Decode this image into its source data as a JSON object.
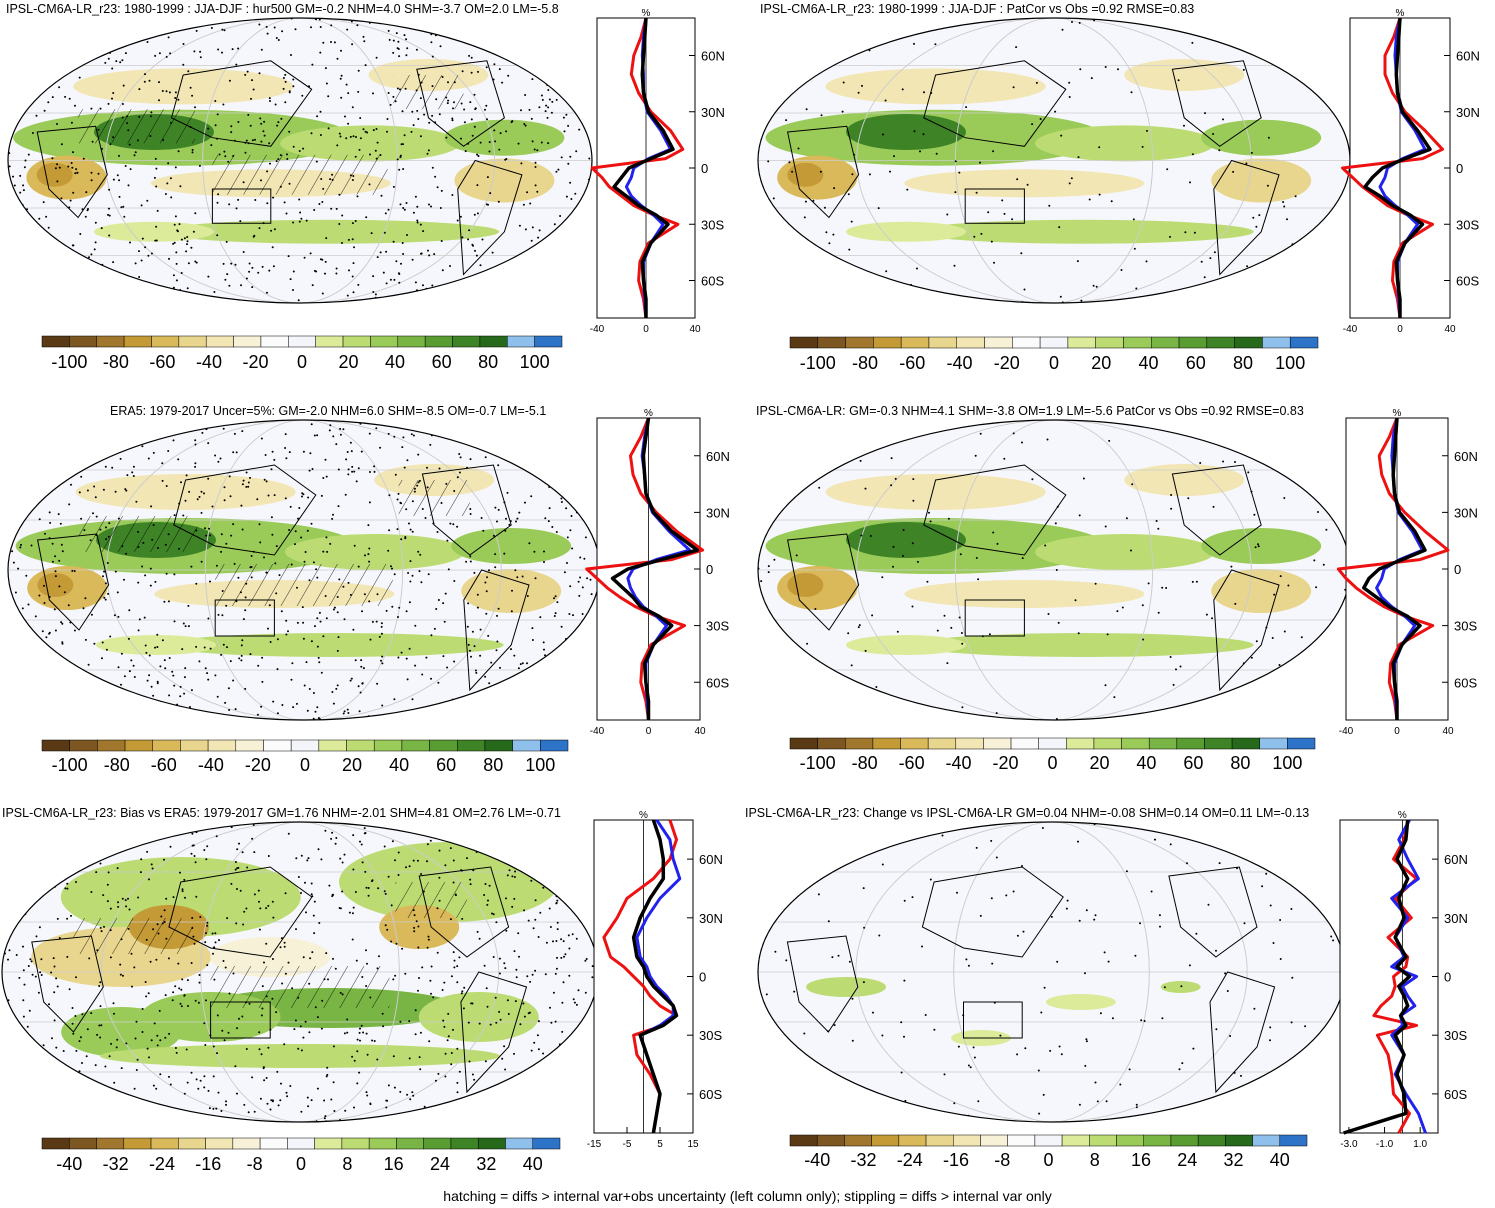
{
  "footer": "hatching = diffs > internal var+obs uncertainty (left column only); stippling = diffs > internal var only",
  "profile_unit": "%",
  "lat_labels": [
    "60N",
    "30N",
    "0",
    "30S",
    "60S"
  ],
  "palette": [
    "#5a3a14",
    "#7d5722",
    "#a1772d",
    "#c39a36",
    "#dab95a",
    "#e9d68e",
    "#f2e6b5",
    "#f7f1d7",
    "#fbfbfb",
    "#f3f5fb",
    "#dbeb9a",
    "#bcdc73",
    "#9acb59",
    "#79b544",
    "#589c32",
    "#3e8426",
    "#27691b",
    "#8fc0ec",
    "#2d73c8"
  ],
  "panels": [
    {
      "title": "IPSL-CM6A-LR_r23: 1980-1999 : JJA-DJF : hur500 GM=-0.2 NHM=4.0 SHM=-3.7 OM=2.0 LM=-5.8",
      "hatching": true,
      "stipple": "dense",
      "cbar_labels": [
        "-100",
        "-80",
        "-60",
        "-40",
        "-20",
        "0",
        "20",
        "40",
        "60",
        "80",
        "100"
      ],
      "xticks": [
        "-40",
        "0",
        "40"
      ],
      "xlim": [
        -40,
        40
      ],
      "chart_data": {
        "type": "line",
        "xlabel": "%",
        "x_unit": "%",
        "y_unit": "latitude",
        "ylim": [
          -80,
          80
        ],
        "lat": [
          80,
          70,
          60,
          50,
          40,
          30,
          20,
          10,
          5,
          0,
          -5,
          -10,
          -15,
          -20,
          -25,
          -30,
          -40,
          -50,
          -60,
          -70,
          -80
        ],
        "series": [
          {
            "name": "black",
            "color": "#000000",
            "values": [
              0,
              -1,
              -2,
              -3,
              -2,
              2,
              14,
              22,
              4,
              -14,
              -20,
              -26,
              -16,
              -6,
              8,
              18,
              4,
              -3,
              -2,
              0,
              0
            ]
          },
          {
            "name": "blue",
            "color": "#2222ee",
            "values": [
              0,
              -2,
              -3,
              -2,
              -2,
              1,
              12,
              20,
              2,
              -10,
              -12,
              -16,
              -12,
              -4,
              6,
              14,
              4,
              -2,
              -2,
              -1,
              0
            ]
          },
          {
            "name": "red",
            "color": "#ee1111",
            "values": [
              0,
              -4,
              -10,
              -12,
              -6,
              4,
              20,
              30,
              16,
              -44,
              -36,
              -30,
              -20,
              -10,
              6,
              26,
              2,
              -5,
              -6,
              -2,
              0
            ]
          }
        ]
      }
    },
    {
      "title": "IPSL-CM6A-LR_r23: 1980-1999 : JJA-DJF : PatCor vs Obs =0.92 RMSE=0.83",
      "hatching": false,
      "stipple": "sparse",
      "cbar_labels": [
        "-100",
        "-80",
        "-60",
        "-40",
        "-20",
        "0",
        "20",
        "40",
        "60",
        "80",
        "100"
      ],
      "xticks": [
        "-40",
        "0",
        "40"
      ],
      "xlim": [
        -40,
        40
      ],
      "chart_data": {
        "type": "line",
        "xlabel": "%",
        "x_unit": "%",
        "y_unit": "latitude",
        "ylim": [
          -80,
          80
        ],
        "lat": [
          80,
          70,
          60,
          50,
          40,
          30,
          20,
          10,
          5,
          0,
          -5,
          -10,
          -15,
          -20,
          -25,
          -30,
          -40,
          -50,
          -60,
          -70,
          -80
        ],
        "series": [
          {
            "name": "black",
            "color": "#000000",
            "values": [
              0,
              -1,
              -2,
              -3,
              -2,
              2,
              14,
              24,
              4,
              -14,
              -22,
              -28,
              -16,
              -6,
              8,
              18,
              4,
              -3,
              -2,
              0,
              0
            ]
          },
          {
            "name": "blue",
            "color": "#2222ee",
            "values": [
              0,
              -3,
              -4,
              -3,
              -2,
              1,
              12,
              20,
              2,
              -10,
              -12,
              -16,
              -12,
              -4,
              6,
              14,
              4,
              -2,
              -2,
              -1,
              0
            ]
          },
          {
            "name": "red",
            "color": "#ee1111",
            "values": [
              0,
              -5,
              -12,
              -12,
              -6,
              4,
              20,
              34,
              18,
              -46,
              -38,
              -30,
              -20,
              -10,
              6,
              26,
              2,
              -5,
              -6,
              -2,
              0
            ]
          }
        ]
      }
    },
    {
      "title": "ERA5: 1979-2017 Uncer=5%: GM=-2.0 NHM=6.0 SHM=-8.5 OM=-0.7 LM=-5.1",
      "hatching": true,
      "stipple": "dense",
      "cbar_labels": [
        "-100",
        "-80",
        "-60",
        "-40",
        "-20",
        "0",
        "20",
        "40",
        "60",
        "80",
        "100"
      ],
      "xticks": [
        "-40",
        "0",
        "40"
      ],
      "xlim": [
        -40,
        40
      ],
      "chart_data": {
        "type": "line",
        "xlabel": "%",
        "x_unit": "%",
        "y_unit": "latitude",
        "ylim": [
          -80,
          80
        ],
        "lat": [
          80,
          70,
          60,
          50,
          40,
          30,
          20,
          10,
          5,
          0,
          -5,
          -10,
          -15,
          -20,
          -25,
          -30,
          -40,
          -50,
          -60,
          -70,
          -80
        ],
        "series": [
          {
            "name": "black",
            "color": "#000000",
            "values": [
              0,
              -2,
              -4,
              -3,
              -2,
              4,
              18,
              38,
              10,
              -16,
              -28,
              -20,
              -12,
              -6,
              8,
              18,
              4,
              -3,
              -2,
              0,
              0
            ]
          },
          {
            "name": "blue",
            "color": "#2222ee",
            "values": [
              0,
              -3,
              -5,
              -3,
              -2,
              3,
              16,
              32,
              6,
              -12,
              -16,
              -14,
              -10,
              -4,
              6,
              14,
              4,
              -2,
              -2,
              -1,
              0
            ]
          },
          {
            "name": "red",
            "color": "#ee1111",
            "values": [
              0,
              -6,
              -14,
              -12,
              -6,
              6,
              22,
              42,
              18,
              -48,
              -40,
              -32,
              -22,
              -10,
              6,
              28,
              2,
              -5,
              -6,
              -2,
              0
            ]
          }
        ]
      }
    },
    {
      "title": "IPSL-CM6A-LR: GM=-0.3 NHM=4.1 SHM=-3.8 OM=1.9 LM=-5.6 PatCor vs Obs =0.92 RMSE=0.83",
      "hatching": false,
      "stipple": "sparse",
      "cbar_labels": [
        "-100",
        "-80",
        "-60",
        "-40",
        "-20",
        "0",
        "20",
        "40",
        "60",
        "80",
        "100"
      ],
      "xticks": [
        "-40",
        "0",
        "40"
      ],
      "xlim": [
        -40,
        40
      ],
      "chart_data": {
        "type": "line",
        "xlabel": "%",
        "x_unit": "%",
        "y_unit": "latitude",
        "ylim": [
          -80,
          80
        ],
        "lat": [
          80,
          70,
          60,
          50,
          40,
          30,
          20,
          10,
          5,
          0,
          -5,
          -10,
          -15,
          -20,
          -25,
          -30,
          -40,
          -50,
          -60,
          -70,
          -80
        ],
        "series": [
          {
            "name": "black",
            "color": "#000000",
            "values": [
              0,
              -1,
              -2,
              -3,
              -2,
              2,
              14,
              22,
              4,
              -14,
              -22,
              -26,
              -16,
              -6,
              8,
              18,
              4,
              -3,
              -2,
              0,
              0
            ]
          },
          {
            "name": "blue",
            "color": "#2222ee",
            "values": [
              0,
              -3,
              -4,
              -3,
              -2,
              1,
              12,
              20,
              2,
              -10,
              -12,
              -16,
              -12,
              -4,
              6,
              14,
              4,
              -2,
              -2,
              -1,
              0
            ]
          },
          {
            "name": "red",
            "color": "#ee1111",
            "values": [
              0,
              -6,
              -14,
              -12,
              -6,
              6,
              22,
              40,
              18,
              -46,
              -40,
              -32,
              -22,
              -10,
              6,
              28,
              2,
              -5,
              -6,
              -2,
              0
            ]
          }
        ]
      }
    },
    {
      "title": "IPSL-CM6A-LR_r23: Bias vs ERA5: 1979-2017 GM=1.76 NHM=-2.01 SHM=4.81 OM=2.76 LM=-0.71",
      "hatching": true,
      "stipple": "dense",
      "cbar_labels": [
        "-40",
        "-32",
        "-24",
        "-16",
        "-8",
        "0",
        "8",
        "16",
        "24",
        "32",
        "40"
      ],
      "xticks": [
        "-15",
        "-5",
        "5",
        "15"
      ],
      "xlim": [
        -15,
        15
      ],
      "chart_data": {
        "type": "line",
        "xlabel": "%",
        "x_unit": "%",
        "y_unit": "latitude",
        "ylim": [
          -80,
          80
        ],
        "lat": [
          80,
          70,
          60,
          50,
          40,
          30,
          20,
          10,
          5,
          0,
          -5,
          -10,
          -15,
          -20,
          -25,
          -30,
          -40,
          -50,
          -60,
          -70,
          -80
        ],
        "series": [
          {
            "name": "black",
            "color": "#000000",
            "values": [
              3,
              5,
              6,
              6,
              2,
              -1,
              -3,
              -2,
              0,
              1,
              3,
              6,
              9,
              10,
              6,
              -1,
              1,
              3,
              5,
              4,
              3
            ]
          },
          {
            "name": "blue",
            "color": "#2222ee",
            "values": [
              4,
              8,
              9,
              11,
              5,
              1,
              -2,
              -1,
              1,
              2,
              4,
              7,
              9,
              9,
              5,
              -1,
              1,
              3,
              5,
              4,
              3
            ]
          },
          {
            "name": "red",
            "color": "#ee1111",
            "values": [
              8,
              10,
              8,
              3,
              -5,
              -8,
              -12,
              -10,
              -6,
              -3,
              0,
              2,
              5,
              10,
              6,
              -3,
              -2,
              2,
              5,
              4,
              3
            ]
          }
        ]
      }
    },
    {
      "title": "IPSL-CM6A-LR_r23: Change vs IPSL-CM6A-LR GM=0.04 NHM=-0.08 SHM=0.14 OM=0.11 LM=-0.13",
      "hatching": false,
      "stipple": "sparse",
      "cbar_labels": [
        "-40",
        "-32",
        "-24",
        "-16",
        "-8",
        "0",
        "8",
        "16",
        "24",
        "32",
        "40"
      ],
      "xticks": [
        "-3.0",
        "-1.0",
        "1.0"
      ],
      "xlim": [
        -3.5,
        2.0
      ],
      "chart_data": {
        "type": "line",
        "xlabel": "%",
        "x_unit": "%",
        "y_unit": "latitude",
        "ylim": [
          -80,
          80
        ],
        "lat": [
          80,
          70,
          60,
          50,
          40,
          30,
          20,
          10,
          5,
          0,
          -5,
          -10,
          -15,
          -20,
          -25,
          -30,
          -40,
          -50,
          -60,
          -70,
          -80
        ],
        "series": [
          {
            "name": "black",
            "color": "#000000",
            "values": [
              0.3,
              0.2,
              -0.3,
              0.3,
              -0.2,
              0.1,
              -0.4,
              0.2,
              -0.3,
              0.4,
              -0.2,
              0.1,
              0.3,
              -0.1,
              0.2,
              -0.4,
              0.1,
              -0.3,
              0.1,
              0.2,
              -3.3
            ]
          },
          {
            "name": "blue",
            "color": "#2222ee",
            "values": [
              0.4,
              -0.2,
              0.3,
              0.9,
              -0.6,
              0.3,
              -0.4,
              0.1,
              -0.6,
              0.8,
              0.0,
              0.3,
              0.7,
              -0.1,
              0.0,
              -0.6,
              0.1,
              -0.4,
              0.2,
              0.9,
              1.3
            ]
          },
          {
            "name": "red",
            "color": "#ee1111",
            "values": [
              0.3,
              0.1,
              -0.5,
              0.8,
              -0.4,
              0.5,
              -0.8,
              0.3,
              0.2,
              -0.5,
              -0.4,
              -0.6,
              -1.2,
              -1.6,
              0.8,
              -1.4,
              -0.8,
              -0.6,
              -0.5,
              0.4,
              -0.2
            ]
          }
        ]
      }
    }
  ]
}
